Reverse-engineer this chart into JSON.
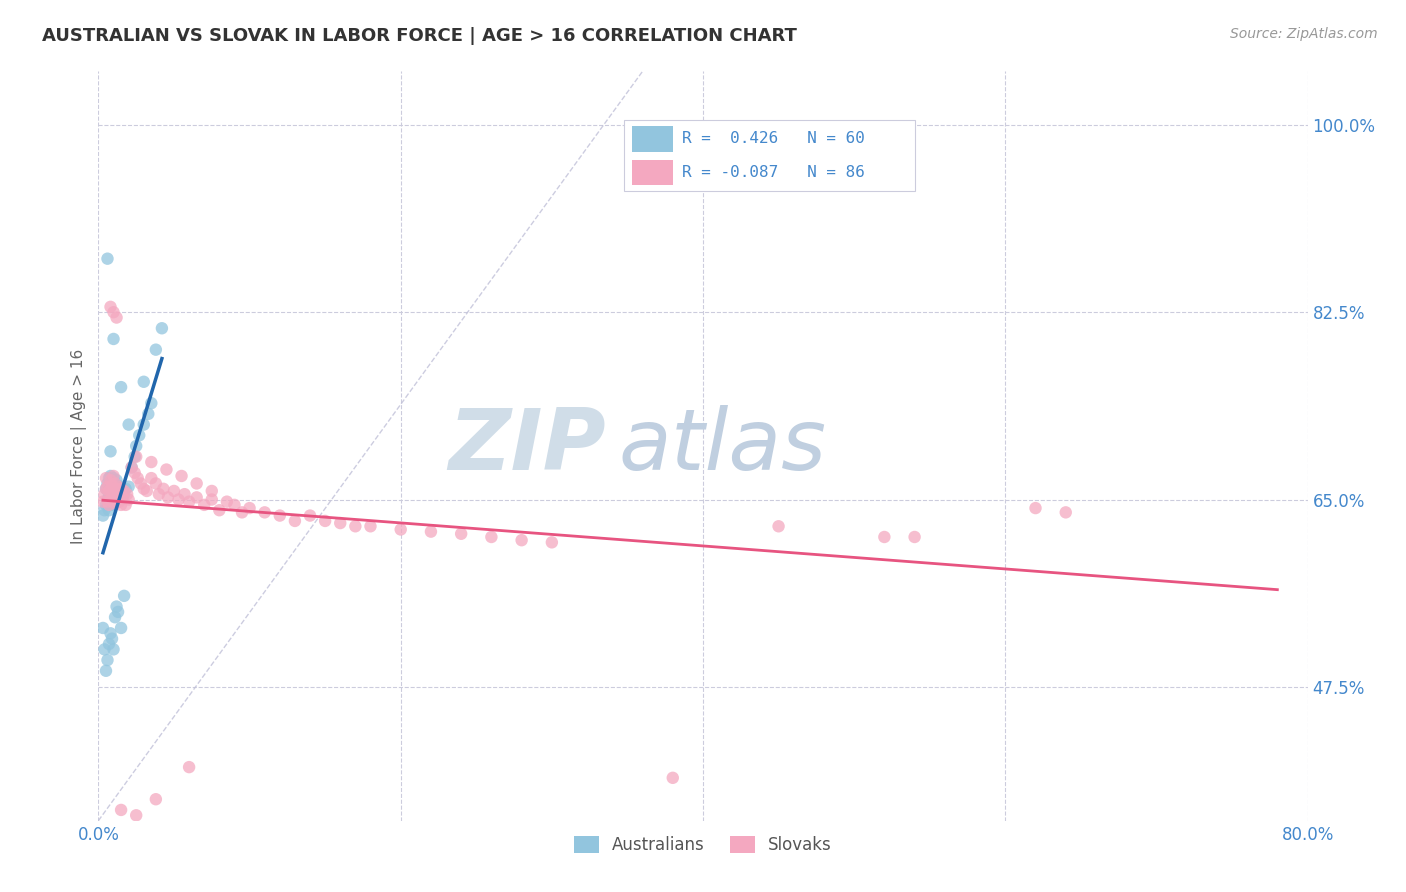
{
  "title": "AUSTRALIAN VS SLOVAK IN LABOR FORCE | AGE > 16 CORRELATION CHART",
  "source": "Source: ZipAtlas.com",
  "ylabel_label": "In Labor Force | Age > 16",
  "xlim": [
    0.0,
    0.8
  ],
  "ylim": [
    0.35,
    1.05
  ],
  "yticks": [
    0.475,
    0.65,
    0.825,
    1.0
  ],
  "ytick_labels": [
    "47.5%",
    "65.0%",
    "82.5%",
    "100.0%"
  ],
  "xtick_labels": [
    "0.0%",
    "",
    "",
    "",
    "80.0%"
  ],
  "watermark_zip": "ZIP",
  "watermark_atlas": "atlas",
  "color_australian": "#92c5de",
  "color_slovak": "#f4a8c0",
  "color_trend_australian": "#2166ac",
  "color_trend_slovak": "#e75480",
  "color_diagonal": "#c0c0d8",
  "background_color": "#ffffff",
  "grid_color": "#ccccdd",
  "tick_color": "#4488cc",
  "watermark_color_zip": "#d0dde8",
  "watermark_color_atlas": "#c0cfe0"
}
